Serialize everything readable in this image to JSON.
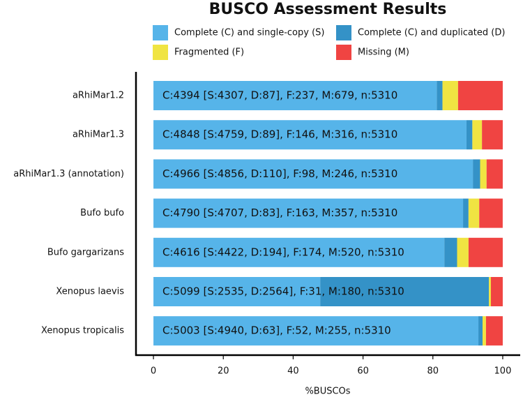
{
  "chart_data": {
    "type": "stacked-bar-horizontal",
    "title": "BUSCO Assessment Results",
    "x_label": "%BUSCOs",
    "categories": [
      "aRhiMar1.2",
      "aRhiMar1.3",
      "aRhiMar1.3 (annotation)",
      "Bufo bufo",
      "Bufo gargarizans",
      "Xenopus laevis",
      "Xenopus tropicalis"
    ],
    "series": [
      {
        "name": "Complete (C) and single-copy (S)",
        "color": "#56b4e9",
        "values": [
          81.11,
          89.62,
          91.45,
          88.64,
          83.28,
          47.74,
          93.03
        ]
      },
      {
        "name": "Complete (C) and duplicated (D)",
        "color": "#3492c7",
        "values": [
          1.64,
          1.68,
          2.07,
          1.56,
          3.65,
          48.29,
          1.19
        ]
      },
      {
        "name": "Fragmented (F)",
        "color": "#f0e442",
        "values": [
          4.46,
          2.75,
          1.85,
          3.07,
          3.28,
          0.58,
          0.98
        ]
      },
      {
        "name": "Missing (M)",
        "color": "#f04442",
        "values": [
          12.79,
          5.95,
          4.63,
          6.72,
          9.79,
          3.39,
          4.8
        ]
      }
    ],
    "bar_labels": [
      "C:4394 [S:4307, D:87], F:237, M:679, n:5310",
      "C:4848 [S:4759, D:89], F:146, M:316, n:5310",
      "C:4966 [S:4856, D:110], F:98, M:246, n:5310",
      "C:4790 [S:4707, D:83], F:163, M:357, n:5310",
      "C:4616 [S:4422, D:194], F:174, M:520, n:5310",
      "C:5099 [S:2535, D:2564], F:31, M:180, n:5310",
      "C:5003 [S:4940, D:63], F:52, M:255, n:5310"
    ],
    "xlim": [
      -5,
      105
    ],
    "xticks": [
      0,
      20,
      40,
      60,
      80,
      100
    ],
    "legend": "top"
  }
}
